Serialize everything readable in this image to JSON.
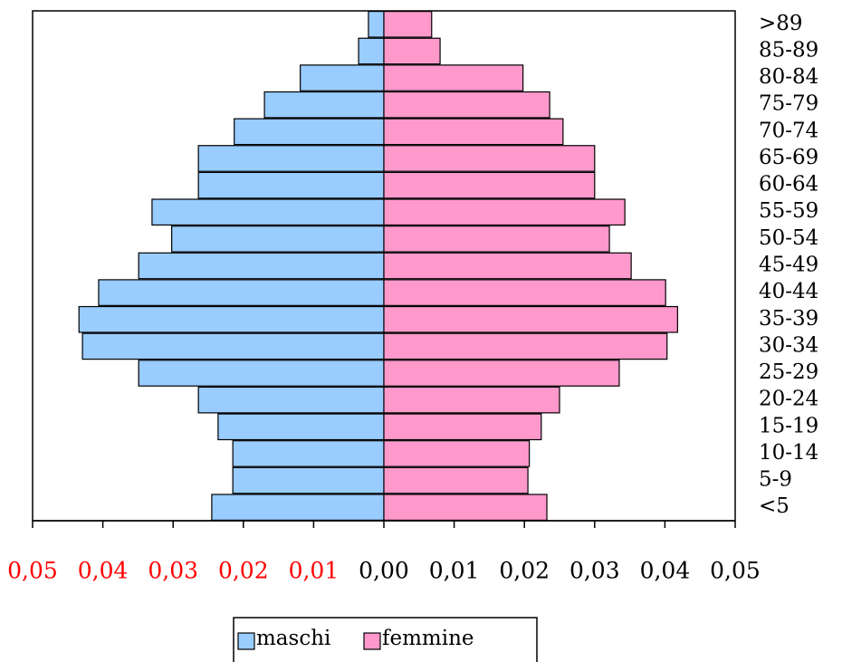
{
  "chart_data": {
    "type": "pyramid",
    "categories": [
      "<5",
      "5-9",
      "10-14",
      "15-19",
      "20-24",
      "25-29",
      "30-34",
      "35-39",
      "40-44",
      "45-49",
      "50-54",
      "55-59",
      "60-64",
      "65-69",
      "70-74",
      "75-79",
      "80-84",
      "85-89",
      ">89"
    ],
    "series": [
      {
        "name": "maschi",
        "color": "#99ccff",
        "values": [
          -0.0245,
          -0.0215,
          -0.0215,
          -0.0236,
          -0.0264,
          -0.0349,
          -0.0429,
          -0.0434,
          -0.0406,
          -0.0349,
          -0.0302,
          -0.033,
          -0.0264,
          -0.0264,
          -0.0213,
          -0.017,
          -0.0119,
          -0.0036,
          -0.0022
        ]
      },
      {
        "name": "femmine",
        "color": "#ff99cc",
        "values": [
          0.0232,
          0.0205,
          0.0207,
          0.0224,
          0.025,
          0.0335,
          0.0403,
          0.0418,
          0.0401,
          0.0352,
          0.0321,
          0.0343,
          0.03,
          0.03,
          0.0255,
          0.0236,
          0.0198,
          0.008,
          0.0068
        ]
      }
    ],
    "xlim": [
      -0.05,
      0.05
    ],
    "xticks": [
      {
        "value": -0.05,
        "label": "0,05"
      },
      {
        "value": -0.04,
        "label": "0,04"
      },
      {
        "value": -0.03,
        "label": "0,03"
      },
      {
        "value": -0.02,
        "label": "0,02"
      },
      {
        "value": -0.01,
        "label": "0,01"
      },
      {
        "value": 0,
        "label": "0,00"
      },
      {
        "value": 0.01,
        "label": "0,01"
      },
      {
        "value": 0.02,
        "label": "0,02"
      },
      {
        "value": 0.03,
        "label": "0,03"
      },
      {
        "value": 0.04,
        "label": "0,04"
      },
      {
        "value": 0.05,
        "label": "0,05"
      }
    ],
    "legend": "bottom"
  }
}
